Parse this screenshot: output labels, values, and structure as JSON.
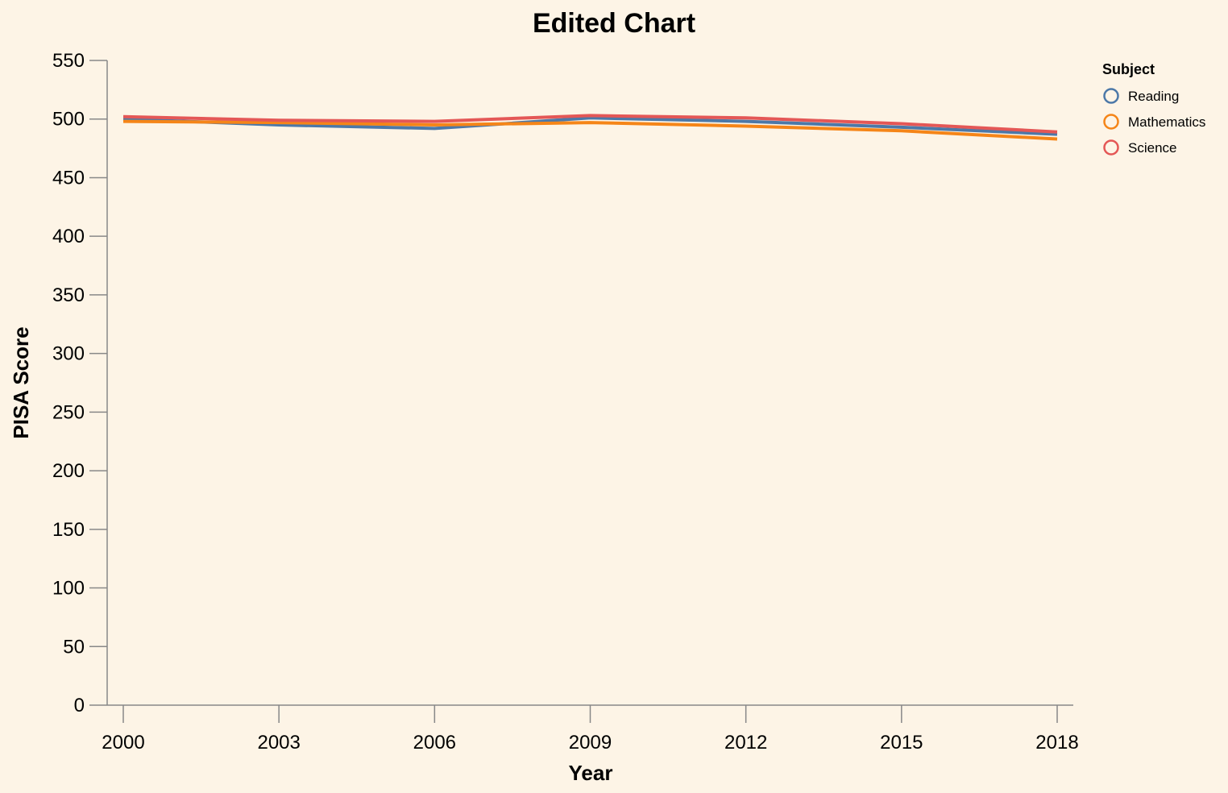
{
  "chart_data": {
    "type": "line",
    "title": "Edited Chart",
    "xlabel": "Year",
    "ylabel": "PISA Score",
    "x": [
      2000,
      2003,
      2006,
      2009,
      2012,
      2015,
      2018
    ],
    "xlim": [
      2000,
      2018
    ],
    "ylim": [
      0,
      550
    ],
    "y_ticks": [
      0,
      50,
      100,
      150,
      200,
      250,
      300,
      350,
      400,
      450,
      500,
      550
    ],
    "grid": false,
    "legend": {
      "title": "Subject",
      "placement": "top-right"
    },
    "series": [
      {
        "name": "Reading",
        "color": "#4c78a8",
        "values": [
          500,
          495,
          492,
          501,
          498,
          493,
          487
        ]
      },
      {
        "name": "Mathematics",
        "color": "#f58518",
        "values": [
          498,
          497,
          495,
          497,
          494,
          490,
          483
        ]
      },
      {
        "name": "Science",
        "color": "#e45756",
        "values": [
          502,
          499,
          498,
          503,
          501,
          496,
          489
        ]
      }
    ]
  }
}
